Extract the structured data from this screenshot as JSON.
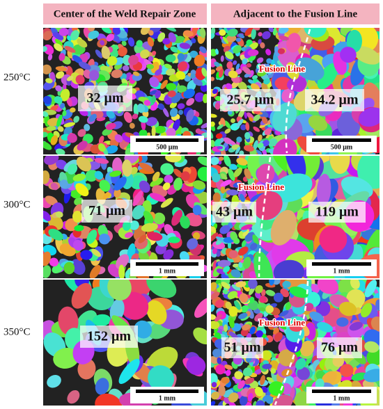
{
  "header": {
    "columns": [
      "Center of the Weld Repair Zone",
      "Adjacent to the Fusion Line"
    ]
  },
  "rows": [
    {
      "temperature": "250°C",
      "panels": [
        {
          "grain_sizes": [
            "32 μm"
          ],
          "scale_bar": "500 μm"
        },
        {
          "fusion_line": "Fusion Line",
          "grain_sizes": [
            "25.7 μm",
            "34.2 μm"
          ],
          "scale_bar": "500 μm"
        }
      ]
    },
    {
      "temperature": "300°C",
      "panels": [
        {
          "grain_sizes": [
            "71 μm"
          ],
          "scale_bar": "1 mm"
        },
        {
          "fusion_line": "Fusion Line",
          "grain_sizes": [
            "43 μm",
            "119 μm"
          ],
          "scale_bar": "1 mm"
        }
      ]
    },
    {
      "temperature": "350°C",
      "panels": [
        {
          "grain_sizes": [
            "152 μm"
          ],
          "scale_bar": "1 mm"
        },
        {
          "fusion_line": "Fusion Line",
          "grain_sizes": [
            "51 μm",
            "76 μm"
          ],
          "scale_bar": "1 mm"
        }
      ]
    }
  ]
}
